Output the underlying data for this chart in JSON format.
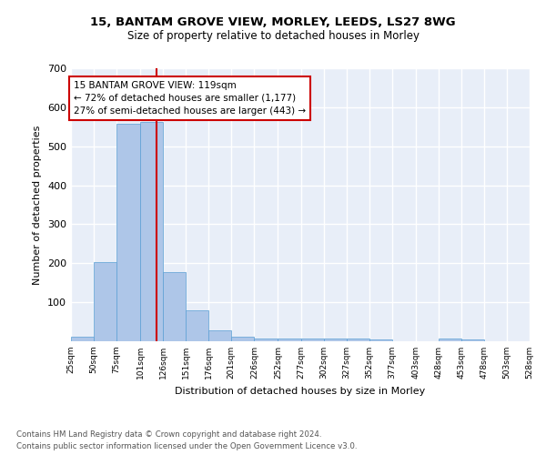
{
  "title_line1": "15, BANTAM GROVE VIEW, MORLEY, LEEDS, LS27 8WG",
  "title_line2": "Size of property relative to detached houses in Morley",
  "xlabel": "Distribution of detached houses by size in Morley",
  "ylabel": "Number of detached properties",
  "bar_edges": [
    25,
    50,
    75,
    101,
    126,
    151,
    176,
    201,
    226,
    252,
    277,
    302,
    327,
    352,
    377,
    403,
    428,
    453,
    478,
    503,
    528
  ],
  "bar_heights": [
    12,
    203,
    558,
    562,
    178,
    79,
    29,
    12,
    6,
    7,
    7,
    6,
    6,
    5,
    0,
    0,
    6,
    5,
    0,
    0
  ],
  "bar_color": "#aec6e8",
  "bar_edge_color": "#5a9fd4",
  "vline_x": 119,
  "vline_color": "#cc0000",
  "annotation_text": "15 BANTAM GROVE VIEW: 119sqm\n← 72% of detached houses are smaller (1,177)\n27% of semi-detached houses are larger (443) →",
  "annotation_box_color": "white",
  "annotation_box_edge": "#cc0000",
  "ylim": [
    0,
    700
  ],
  "yticks": [
    0,
    100,
    200,
    300,
    400,
    500,
    600,
    700
  ],
  "background_color": "#e8eef8",
  "grid_color": "white",
  "footnote_line1": "Contains HM Land Registry data © Crown copyright and database right 2024.",
  "footnote_line2": "Contains public sector information licensed under the Open Government Licence v3.0.",
  "tick_labels": [
    "25sqm",
    "50sqm",
    "75sqm",
    "101sqm",
    "126sqm",
    "151sqm",
    "176sqm",
    "201sqm",
    "226sqm",
    "252sqm",
    "277sqm",
    "302sqm",
    "327sqm",
    "352sqm",
    "377sqm",
    "403sqm",
    "428sqm",
    "453sqm",
    "478sqm",
    "503sqm",
    "528sqm"
  ]
}
